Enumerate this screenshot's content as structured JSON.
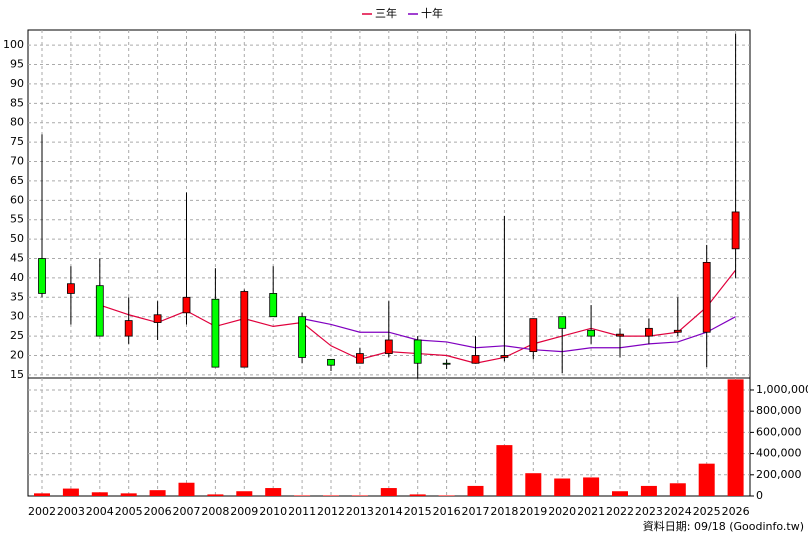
{
  "chart_data": {
    "type": "candlestick",
    "categories": [
      "2002",
      "2003",
      "2004",
      "2005",
      "2006",
      "2007",
      "2008",
      "2009",
      "2010",
      "2011",
      "2012",
      "2013",
      "2014",
      "2015",
      "2016",
      "2017",
      "2018",
      "2019",
      "2020",
      "2021",
      "2022",
      "2023",
      "2024",
      "2025",
      "2026"
    ],
    "open": [
      45,
      36,
      38,
      25,
      28.5,
      31,
      34.5,
      17,
      36,
      30,
      19,
      18,
      20.5,
      24,
      18,
      18,
      19.5,
      21,
      30,
      26.5,
      25,
      25,
      26,
      26,
      47.5
    ],
    "high": [
      77,
      43,
      45,
      35,
      34,
      62,
      42.5,
      37,
      43,
      31,
      19,
      22,
      34,
      25,
      19,
      25,
      56,
      29.5,
      30,
      33,
      27,
      29.5,
      35,
      48.5,
      103
    ],
    "low": [
      35,
      28,
      25,
      23,
      24,
      28,
      17,
      17,
      30,
      18,
      16,
      18,
      19.5,
      14,
      16.5,
      18,
      18.5,
      19,
      15.5,
      23,
      19.5,
      23,
      25,
      17,
      40
    ],
    "close": [
      36,
      38.5,
      25,
      29,
      30.5,
      35,
      17,
      36.5,
      30,
      19.5,
      17.5,
      20.5,
      24,
      18,
      17.8,
      20,
      20,
      29.5,
      27,
      25,
      25.5,
      27,
      26.5,
      44,
      57
    ],
    "up_color": "#ff0000",
    "down_color": "#00ff00",
    "series": [
      {
        "name": "三年",
        "color": "#e0003c",
        "values": [
          null,
          null,
          33,
          30.5,
          28.5,
          31.5,
          27.5,
          29.5,
          27.5,
          28.5,
          22.5,
          19,
          21,
          20.5,
          20,
          18,
          19.5,
          23,
          25,
          27,
          25,
          25,
          26,
          32.5,
          42
        ]
      },
      {
        "name": "十年",
        "color": "#8000c0",
        "values": [
          null,
          null,
          null,
          null,
          null,
          null,
          null,
          null,
          null,
          29.5,
          28,
          26,
          26,
          24,
          23.5,
          22,
          22.5,
          21.5,
          21,
          22,
          22,
          23,
          23.5,
          26,
          30
        ]
      }
    ],
    "ylim": [
      14.2,
      103.9
    ],
    "yticks": [
      15,
      20,
      25,
      30,
      35,
      40,
      45,
      50,
      55,
      60,
      65,
      70,
      75,
      80,
      85,
      90,
      95,
      100
    ],
    "volume": {
      "color": "#ff0000",
      "values": [
        25000,
        70000,
        35000,
        25000,
        55000,
        125000,
        15000,
        45000,
        75000,
        5000,
        5000,
        5000,
        75000,
        15000,
        5000,
        95000,
        480000,
        215000,
        165000,
        175000,
        45000,
        95000,
        120000,
        305000,
        1100000
      ],
      "ylim": [
        0,
        1113000
      ],
      "yticks": [
        0,
        {
          "value": 200000,
          "label": "200,000"
        },
        {
          "value": 400000,
          "label": "400,000"
        },
        {
          "value": 600000,
          "label": "600,000"
        },
        {
          "value": 800000,
          "label": "800,000"
        },
        {
          "value": 1000000,
          "label": "1,000,000"
        }
      ]
    },
    "grid": true,
    "note": "資料日期: 09/18 (Goodinfo.tw)"
  }
}
